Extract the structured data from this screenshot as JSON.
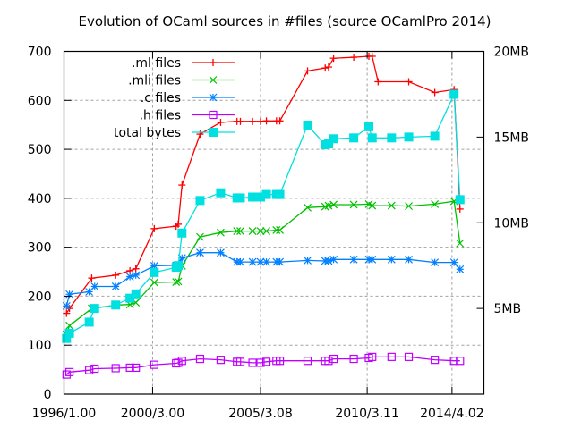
{
  "chart_data": {
    "type": "line",
    "title": "Evolution of OCaml sources in #files (source OCamlPro 2014)",
    "xlabel": "",
    "ylabel": "",
    "y2label": "",
    "xlim": [
      0,
      100
    ],
    "ylim": [
      0,
      700
    ],
    "y2lim": [
      0,
      20
    ],
    "x_tick_labels": [
      "1996/1.00",
      "2000/3.00",
      "2005/3.08",
      "2010/3.11",
      "2014/4.02"
    ],
    "x_tick_positions": [
      0,
      21.1,
      46.8,
      72.2,
      92.4
    ],
    "y_ticks": [
      0,
      100,
      200,
      300,
      400,
      500,
      600,
      700
    ],
    "y2_ticks": [
      5,
      10,
      15,
      20
    ],
    "y2_tick_labels": [
      "5MB",
      "10MB",
      "15MB",
      "20MB"
    ],
    "grid": true,
    "legend_position": "top-left",
    "series": [
      {
        "name": ".ml files",
        "color": "#ff0000",
        "marker": "plus",
        "axis": "y",
        "points": [
          [
            0.6,
            165
          ],
          [
            1.3,
            175
          ],
          [
            6.6,
            237
          ],
          [
            12.3,
            243
          ],
          [
            15.7,
            252
          ],
          [
            17.1,
            256
          ],
          [
            21.5,
            338
          ],
          [
            26.7,
            343
          ],
          [
            27.2,
            347
          ],
          [
            28.1,
            427
          ],
          [
            32.4,
            531
          ],
          [
            37.3,
            555
          ],
          [
            41.2,
            557
          ],
          [
            42.0,
            557
          ],
          [
            44.9,
            557
          ],
          [
            46.8,
            557
          ],
          [
            48.2,
            558
          ],
          [
            50.6,
            558
          ],
          [
            51.4,
            558
          ],
          [
            58.0,
            660
          ],
          [
            62.2,
            666
          ],
          [
            63.0,
            668
          ],
          [
            64.2,
            686
          ],
          [
            69.0,
            688
          ],
          [
            72.6,
            690
          ],
          [
            73.4,
            690
          ],
          [
            74.8,
            638
          ],
          [
            82.1,
            638
          ],
          [
            88.3,
            616
          ],
          [
            92.9,
            622
          ],
          [
            94.3,
            378
          ]
        ]
      },
      {
        "name": ".mli files",
        "color": "#00c000",
        "marker": "x",
        "axis": "y",
        "points": [
          [
            0.6,
            122
          ],
          [
            1.3,
            140
          ],
          [
            6.6,
            175
          ],
          [
            12.3,
            182
          ],
          [
            15.7,
            183
          ],
          [
            17.1,
            187
          ],
          [
            21.5,
            228
          ],
          [
            26.7,
            229
          ],
          [
            27.2,
            230
          ],
          [
            28.1,
            262
          ],
          [
            32.4,
            321
          ],
          [
            37.3,
            330
          ],
          [
            41.2,
            333
          ],
          [
            42.0,
            333
          ],
          [
            44.9,
            333
          ],
          [
            46.8,
            333
          ],
          [
            48.2,
            333
          ],
          [
            50.6,
            335
          ],
          [
            51.4,
            335
          ],
          [
            58.0,
            381
          ],
          [
            62.2,
            383
          ],
          [
            63.0,
            385
          ],
          [
            64.2,
            387
          ],
          [
            69.0,
            387
          ],
          [
            72.6,
            388
          ],
          [
            73.4,
            385
          ],
          [
            78.0,
            385
          ],
          [
            82.1,
            384
          ],
          [
            88.3,
            388
          ],
          [
            92.9,
            394
          ],
          [
            94.3,
            308
          ]
        ]
      },
      {
        "name": ".c files",
        "color": "#0080ff",
        "marker": "star",
        "axis": "y",
        "points": [
          [
            0.6,
            180
          ],
          [
            1.3,
            204
          ],
          [
            6.0,
            209
          ],
          [
            7.3,
            220
          ],
          [
            12.3,
            220
          ],
          [
            15.7,
            240
          ],
          [
            17.1,
            243
          ],
          [
            21.5,
            262
          ],
          [
            26.7,
            263
          ],
          [
            27.2,
            262
          ],
          [
            28.1,
            278
          ],
          [
            32.4,
            289
          ],
          [
            37.3,
            289
          ],
          [
            41.2,
            270
          ],
          [
            42.0,
            270
          ],
          [
            44.9,
            270
          ],
          [
            46.8,
            270
          ],
          [
            48.2,
            270
          ],
          [
            50.6,
            270
          ],
          [
            51.4,
            270
          ],
          [
            58.0,
            273
          ],
          [
            62.2,
            272
          ],
          [
            63.0,
            272
          ],
          [
            64.2,
            275
          ],
          [
            69.0,
            275
          ],
          [
            72.6,
            275
          ],
          [
            73.4,
            275
          ],
          [
            78.0,
            275
          ],
          [
            82.1,
            275
          ],
          [
            88.3,
            269
          ],
          [
            92.9,
            269
          ],
          [
            94.3,
            255
          ]
        ]
      },
      {
        "name": ".h files",
        "color": "#c000ff",
        "marker": "square",
        "axis": "y",
        "points": [
          [
            0.6,
            40
          ],
          [
            1.3,
            45
          ],
          [
            6.0,
            49
          ],
          [
            7.3,
            52
          ],
          [
            12.3,
            53
          ],
          [
            15.7,
            54
          ],
          [
            17.1,
            54
          ],
          [
            21.5,
            60
          ],
          [
            26.7,
            63
          ],
          [
            27.2,
            64
          ],
          [
            28.1,
            68
          ],
          [
            32.4,
            72
          ],
          [
            37.3,
            70
          ],
          [
            41.2,
            66
          ],
          [
            42.0,
            66
          ],
          [
            44.9,
            64
          ],
          [
            46.8,
            64
          ],
          [
            48.2,
            66
          ],
          [
            50.6,
            68
          ],
          [
            51.4,
            68
          ],
          [
            58.0,
            68
          ],
          [
            62.2,
            68
          ],
          [
            63.0,
            68
          ],
          [
            64.2,
            72
          ],
          [
            69.0,
            72
          ],
          [
            72.6,
            74
          ],
          [
            73.4,
            76
          ],
          [
            78.0,
            76
          ],
          [
            82.1,
            76
          ],
          [
            88.3,
            70
          ],
          [
            92.9,
            68
          ],
          [
            94.3,
            68
          ]
        ]
      },
      {
        "name": "total bytes",
        "color": "#00e0e0",
        "marker": "filled-square",
        "axis": "y2",
        "points": [
          [
            0.6,
            3.25
          ],
          [
            1.3,
            3.55
          ],
          [
            6.0,
            4.2
          ],
          [
            7.3,
            5.0
          ],
          [
            12.3,
            5.2
          ],
          [
            15.7,
            5.6
          ],
          [
            17.1,
            5.85
          ],
          [
            21.5,
            7.1
          ],
          [
            26.7,
            7.4
          ],
          [
            27.2,
            7.5
          ],
          [
            28.1,
            9.4
          ],
          [
            32.4,
            11.3
          ],
          [
            37.3,
            11.75
          ],
          [
            41.2,
            11.45
          ],
          [
            42.0,
            11.45
          ],
          [
            44.9,
            11.5
          ],
          [
            46.8,
            11.5
          ],
          [
            48.2,
            11.65
          ],
          [
            50.6,
            11.65
          ],
          [
            51.4,
            11.65
          ],
          [
            58.0,
            15.7
          ],
          [
            62.2,
            14.55
          ],
          [
            63.0,
            14.6
          ],
          [
            64.2,
            14.9
          ],
          [
            69.0,
            14.95
          ],
          [
            72.6,
            15.6
          ],
          [
            73.4,
            14.95
          ],
          [
            78.0,
            14.95
          ],
          [
            82.1,
            15.0
          ],
          [
            88.3,
            15.05
          ],
          [
            92.9,
            17.5
          ],
          [
            94.3,
            11.35
          ]
        ]
      }
    ]
  },
  "ui": {
    "title": "Evolution of OCaml sources in #files (source OCamlPro 2014)",
    "y_tick_labels": [
      "0",
      "100",
      "200",
      "300",
      "400",
      "500",
      "600",
      "700"
    ],
    "legend_labels": [
      ".ml files",
      ".mli files",
      ".c files",
      ".h files",
      "total bytes"
    ]
  }
}
